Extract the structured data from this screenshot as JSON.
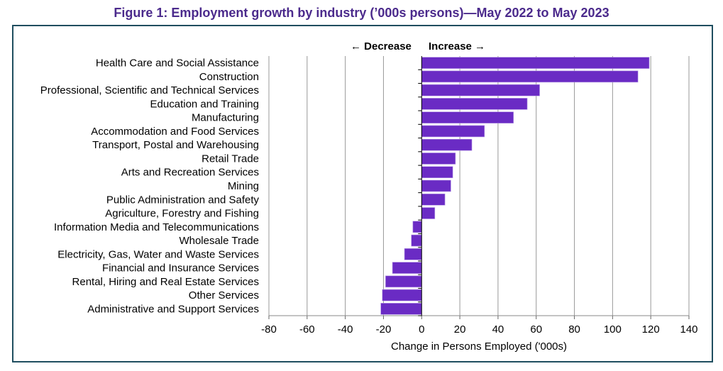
{
  "chart_data": {
    "type": "bar",
    "orientation": "horizontal",
    "title": "Figure 1: Employment growth by industry (’000s persons)—May 2022 to May 2023",
    "xlabel": "Change in Persons Employed ('000s)",
    "ylabel": "",
    "xlim": [
      -80,
      140
    ],
    "xticks": [
      -80,
      -60,
      -40,
      -20,
      0,
      20,
      40,
      60,
      80,
      100,
      120,
      140
    ],
    "grid": true,
    "annotations": {
      "decrease": "← Decrease",
      "increase": "Increase →"
    },
    "bar_color": "#6a2bc4",
    "categories": [
      "Health Care and Social Assistance",
      "Construction",
      "Professional, Scientific and Technical Services",
      "Education and Training",
      "Manufacturing",
      "Accommodation and Food Services",
      "Transport, Postal and Warehousing",
      "Retail Trade",
      "Arts and Recreation Services",
      "Mining",
      "Public Administration and Safety",
      "Agriculture, Forestry and Fishing",
      "Information Media and Telecommunications",
      "Wholesale Trade",
      "Electricity, Gas, Water and Waste Services",
      "Financial and Insurance Services",
      "Rental, Hiring and Real Estate Services",
      "Other Services",
      "Administrative and Support Services"
    ],
    "values": [
      119.2,
      113.3,
      61.8,
      55.3,
      48.1,
      32.9,
      26.3,
      17.7,
      16.3,
      15.3,
      12.2,
      6.9,
      -4.6,
      -5.4,
      -9.0,
      -15.3,
      -18.9,
      -20.6,
      -21.4
    ]
  }
}
